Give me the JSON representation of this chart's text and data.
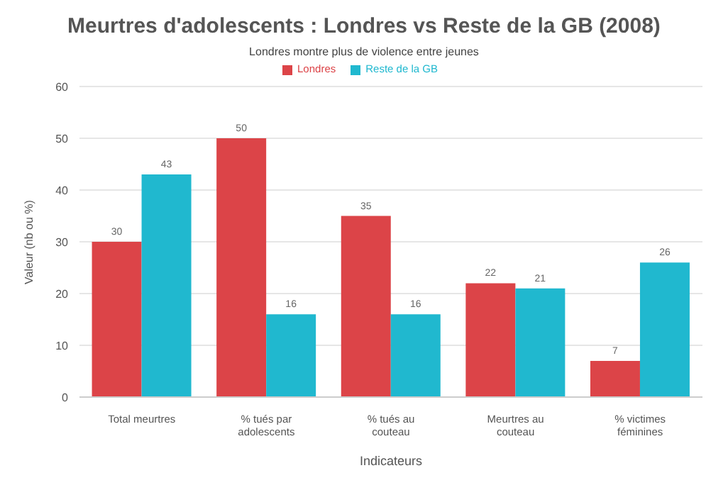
{
  "chart_data": {
    "type": "bar",
    "title": "Meurtres d'adolescents : Londres vs Reste de la GB (2008)",
    "subtitle": "Londres montre plus de violence entre jeunes",
    "xlabel": "Indicateurs",
    "ylabel": "Valeur (nb ou %)",
    "categories": [
      "Total meurtres",
      "% tués par adolescents",
      "% tués au couteau",
      "Meurtres au couteau",
      "% victimes féminines"
    ],
    "series": [
      {
        "name": "Londres",
        "color": "#dc4448",
        "values": [
          30,
          50,
          35,
          22,
          7
        ]
      },
      {
        "name": "Reste de la GB",
        "color": "#20b8cf",
        "values": [
          43,
          16,
          16,
          21,
          26
        ]
      }
    ],
    "ylim": [
      0,
      60
    ],
    "yticks": [
      0,
      10,
      20,
      30,
      40,
      50,
      60
    ],
    "grid": "y",
    "legend": "top",
    "data_labels": true
  }
}
